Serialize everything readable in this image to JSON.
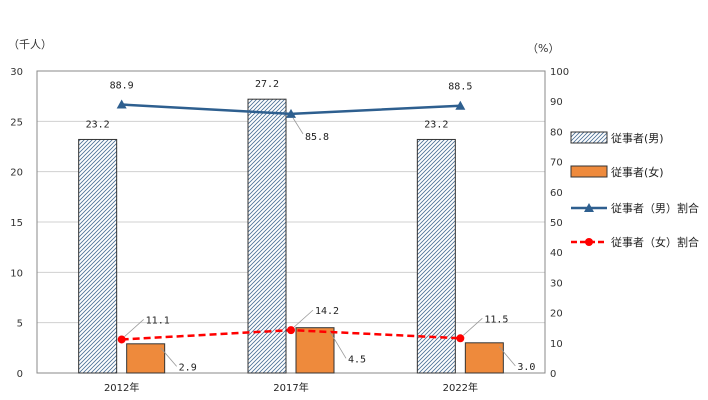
{
  "chart_data": {
    "type": "bar",
    "categories": [
      "2012年",
      "2017年",
      "2022年"
    ],
    "left_axis": {
      "unit": "（千人）",
      "ylim": [
        0,
        30
      ],
      "ticks": [
        "0",
        "5",
        "10",
        "15",
        "20",
        "25",
        "30"
      ]
    },
    "right_axis": {
      "unit": "（%）",
      "ylim": [
        0,
        100
      ],
      "ticks": [
        "0",
        "10",
        "20",
        "30",
        "40",
        "50",
        "60",
        "70",
        "80",
        "90",
        "100"
      ]
    },
    "series": [
      {
        "name": "従事者(男)",
        "kind": "bar",
        "axis": "left",
        "pattern": "hatch",
        "color": "#4a6f96",
        "values": [
          23.2,
          27.2,
          23.2
        ],
        "labels": [
          "23.2",
          "27.2",
          "23.2"
        ]
      },
      {
        "name": "従事者(女)",
        "kind": "bar",
        "axis": "left",
        "pattern": "solid",
        "color": "#ee8a3c",
        "values": [
          2.9,
          4.5,
          3.0
        ],
        "labels": [
          "2.9",
          "4.5",
          "3.0"
        ]
      },
      {
        "name": "従事者（男）割合",
        "kind": "line",
        "axis": "right",
        "marker": "triangle",
        "dash": "solid",
        "color": "#2e5f8f",
        "values": [
          88.9,
          85.8,
          88.5
        ],
        "labels": [
          "88.9",
          "85.8",
          "88.5"
        ]
      },
      {
        "name": "従事者（女）割合",
        "kind": "line",
        "axis": "right",
        "marker": "circle",
        "dash": "dashed",
        "color": "#ff0000",
        "values": [
          11.1,
          14.2,
          11.5
        ],
        "labels": [
          "11.1",
          "14.2",
          "11.5"
        ]
      }
    ],
    "grid": true,
    "legend_position": "right"
  }
}
